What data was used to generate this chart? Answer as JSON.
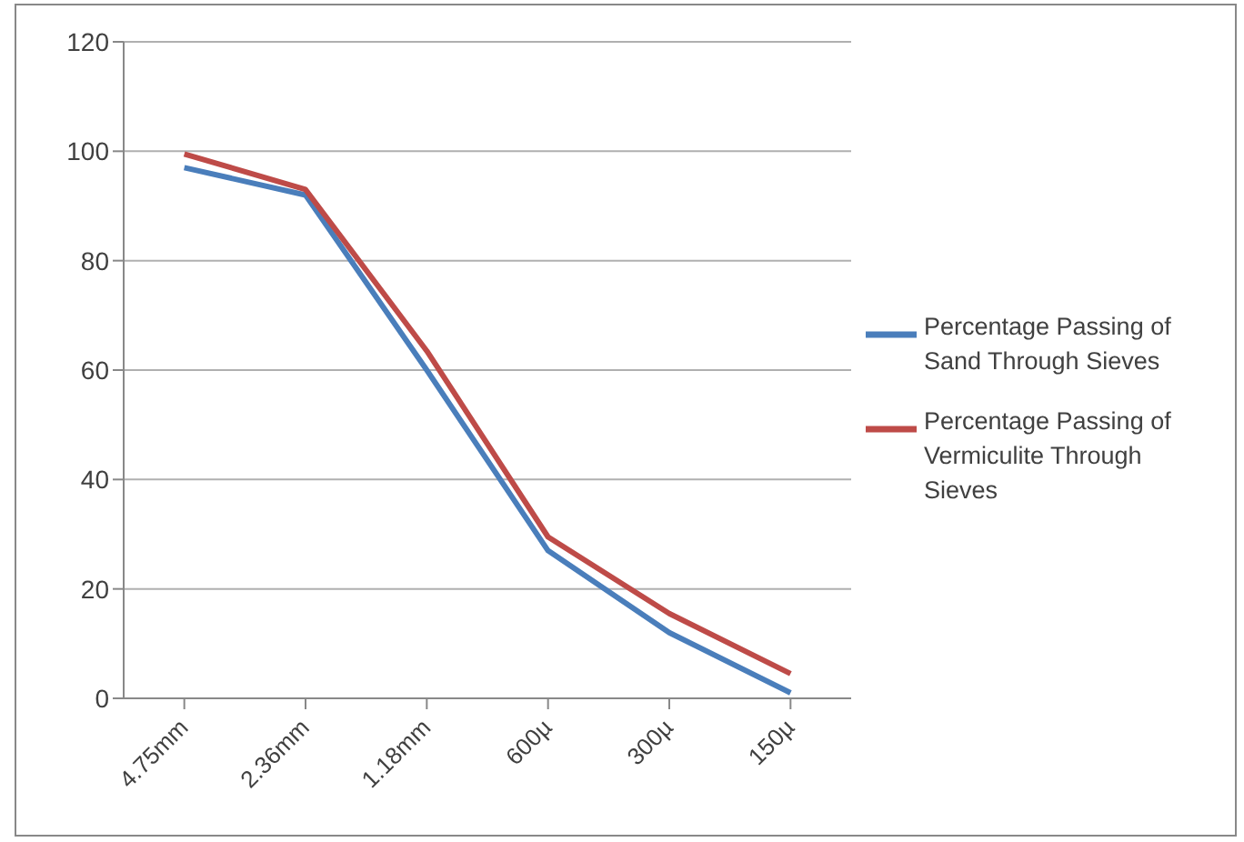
{
  "chart_data": {
    "type": "line",
    "categories": [
      "4.75mm",
      "2.36mm",
      "1.18mm",
      "600µ",
      "300µ",
      "150µ"
    ],
    "series": [
      {
        "name": "Percentage Passing of Sand Through Sieves",
        "color": "#4a7ebb",
        "values": [
          97,
          92,
          60,
          27,
          12,
          1
        ]
      },
      {
        "name": "Percentage Passing of Vermiculite Through Sieves",
        "color": "#be4b48",
        "values": [
          99.5,
          93,
          63.5,
          29.5,
          15.5,
          4.5
        ]
      }
    ],
    "ylim": [
      0,
      120
    ],
    "yticks": [
      0,
      20,
      40,
      60,
      80,
      100,
      120
    ],
    "grid": "y",
    "legend": "right",
    "marker": "none",
    "line_style": "solid"
  }
}
